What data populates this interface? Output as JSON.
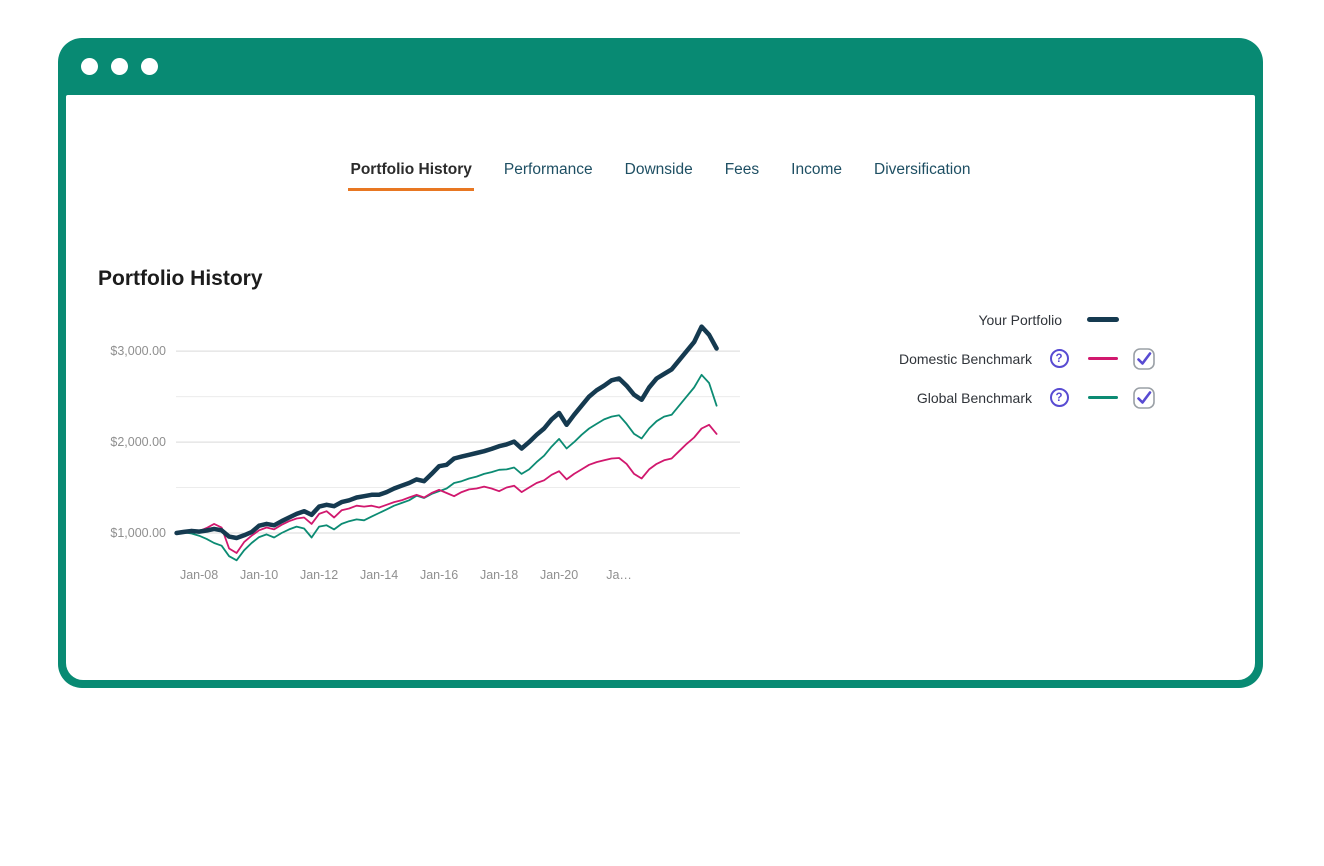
{
  "window": {
    "frame_color": "#088a73",
    "controls": [
      "window-dot",
      "window-dot",
      "window-dot"
    ]
  },
  "tabs": [
    {
      "label": "Portfolio History",
      "active": true
    },
    {
      "label": "Performance",
      "active": false
    },
    {
      "label": "Downside",
      "active": false
    },
    {
      "label": "Fees",
      "active": false
    },
    {
      "label": "Income",
      "active": false
    },
    {
      "label": "Diversification",
      "active": false
    }
  ],
  "heading": "Portfolio History",
  "legend": [
    {
      "label": "Your Portfolio",
      "color": "#153a50",
      "swatch": "thick",
      "help_icon": false,
      "checkbox": null
    },
    {
      "label": "Domestic Benchmark",
      "color": "#d1186e",
      "swatch": "thin",
      "help_icon": true,
      "checkbox": true
    },
    {
      "label": "Global Benchmark",
      "color": "#0c8b73",
      "swatch": "thin",
      "help_icon": true,
      "checkbox": true
    }
  ],
  "colors": {
    "frame": "#088a73",
    "tab_active_text": "#2b2b2b",
    "tab_inactive_text": "#1e4f63",
    "tab_underline": "#e87722",
    "help_purple": "#584bd2",
    "checkbox_border": "#9aa0a6",
    "grid_major": "#d9d9d9",
    "grid_minor": "#ececec",
    "axis_text": "#8f8f8f"
  },
  "chart_data": {
    "type": "line",
    "title": "Portfolio History",
    "xlabel": "",
    "ylabel": "",
    "grid": "horizontal",
    "legend_position": "right",
    "xlim": [
      2007.23,
      2026.03
    ],
    "ylim": [
      670,
      3420
    ],
    "y_gridlines": [
      1000,
      1500,
      2000,
      2500,
      3000
    ],
    "y_ticks": [
      {
        "value": 1000,
        "label": "$1,000.00"
      },
      {
        "value": 2000,
        "label": "$2,000.00"
      },
      {
        "value": 3000,
        "label": "$3,000.00"
      }
    ],
    "x_ticks": [
      {
        "value": 2008,
        "label": "Jan-08"
      },
      {
        "value": 2010,
        "label": "Jan-10"
      },
      {
        "value": 2012,
        "label": "Jan-12"
      },
      {
        "value": 2014,
        "label": "Jan-14"
      },
      {
        "value": 2016,
        "label": "Jan-16"
      },
      {
        "value": 2018,
        "label": "Jan-18"
      },
      {
        "value": 2020,
        "label": "Jan-20"
      },
      {
        "value": 2022,
        "label": "Ja…"
      }
    ],
    "x": [
      2007.25,
      2007.5,
      2007.75,
      2008,
      2008.25,
      2008.5,
      2008.75,
      2009,
      2009.25,
      2009.5,
      2009.75,
      2010,
      2010.25,
      2010.5,
      2010.75,
      2011,
      2011.25,
      2011.5,
      2011.75,
      2012,
      2012.25,
      2012.5,
      2012.75,
      2013,
      2013.25,
      2013.5,
      2013.75,
      2014,
      2014.25,
      2014.5,
      2014.75,
      2015,
      2015.25,
      2015.5,
      2015.75,
      2016,
      2016.25,
      2016.5,
      2016.75,
      2017,
      2017.25,
      2017.5,
      2017.75,
      2018,
      2018.25,
      2018.5,
      2018.75,
      2019,
      2019.25,
      2019.5,
      2019.75,
      2020,
      2020.25,
      2020.5,
      2020.75,
      2021,
      2021.25,
      2021.5,
      2021.75,
      2022,
      2022.25,
      2022.5,
      2022.75,
      2023,
      2023.25,
      2023.5,
      2023.75,
      2024,
      2024.25,
      2024.5,
      2024.75,
      2025,
      2025.25
    ],
    "series": [
      {
        "name": "Your Portfolio",
        "color": "#153a50",
        "line_width": 4.5,
        "values": [
          1000,
          1012,
          1022,
          1015,
          1028,
          1045,
          1030,
          960,
          945,
          975,
          1010,
          1080,
          1100,
          1085,
          1130,
          1170,
          1210,
          1240,
          1200,
          1290,
          1310,
          1295,
          1340,
          1360,
          1390,
          1405,
          1420,
          1420,
          1450,
          1490,
          1520,
          1550,
          1590,
          1570,
          1650,
          1735,
          1750,
          1820,
          1840,
          1860,
          1880,
          1900,
          1925,
          1955,
          1975,
          2005,
          1930,
          2000,
          2080,
          2150,
          2250,
          2320,
          2190,
          2300,
          2400,
          2500,
          2570,
          2620,
          2680,
          2700,
          2620,
          2520,
          2465,
          2600,
          2700,
          2750,
          2800,
          2900,
          3000,
          3100,
          3270,
          3180,
          3030
        ]
      },
      {
        "name": "Domestic Benchmark",
        "color": "#d1186e",
        "line_width": 1.8,
        "values": [
          1000,
          1018,
          1035,
          1020,
          1055,
          1100,
          1060,
          830,
          780,
          900,
          970,
          1030,
          1060,
          1040,
          1090,
          1130,
          1160,
          1170,
          1100,
          1210,
          1240,
          1170,
          1250,
          1270,
          1300,
          1290,
          1300,
          1280,
          1310,
          1340,
          1360,
          1390,
          1420,
          1390,
          1440,
          1475,
          1440,
          1405,
          1450,
          1480,
          1490,
          1510,
          1490,
          1460,
          1500,
          1520,
          1450,
          1500,
          1550,
          1580,
          1640,
          1680,
          1590,
          1650,
          1700,
          1750,
          1780,
          1800,
          1820,
          1825,
          1760,
          1650,
          1600,
          1700,
          1760,
          1800,
          1820,
          1900,
          1980,
          2050,
          2150,
          2190,
          2090
        ]
      },
      {
        "name": "Global Benchmark",
        "color": "#0c8b73",
        "line_width": 1.8,
        "values": [
          1000,
          1008,
          995,
          970,
          935,
          890,
          860,
          745,
          700,
          810,
          890,
          955,
          985,
          950,
          1000,
          1040,
          1070,
          1050,
          950,
          1070,
          1085,
          1040,
          1100,
          1130,
          1150,
          1140,
          1180,
          1220,
          1260,
          1300,
          1330,
          1360,
          1410,
          1385,
          1430,
          1460,
          1490,
          1550,
          1570,
          1600,
          1620,
          1650,
          1670,
          1695,
          1700,
          1720,
          1650,
          1700,
          1780,
          1850,
          1950,
          2035,
          1930,
          2000,
          2080,
          2150,
          2200,
          2250,
          2280,
          2295,
          2200,
          2090,
          2040,
          2150,
          2230,
          2280,
          2300,
          2400,
          2500,
          2600,
          2740,
          2650,
          2400
        ]
      }
    ]
  }
}
